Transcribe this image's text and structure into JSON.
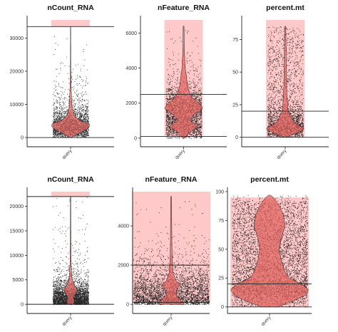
{
  "colors": {
    "shade": "#ffc9c9",
    "violin_fill": "#e2625e",
    "violin_stroke": "#222222",
    "points": "#000000",
    "axis": "#222222"
  },
  "chart_data": [
    {
      "type": "violin",
      "title": "nCount_RNA",
      "xlabel": "",
      "ylabel": "",
      "categories": [
        "query"
      ],
      "ylim": [
        -1500,
        35500
      ],
      "yticks": [
        0,
        10000,
        20000,
        30000
      ],
      "hlines": [
        33500,
        0
      ],
      "shaded_range": [
        33500,
        35500
      ],
      "median": 4000,
      "max": 33500,
      "n_points": 2600,
      "violin": [
        [
          0,
          0.05
        ],
        [
          1500,
          0.5
        ],
        [
          2500,
          0.85
        ],
        [
          3500,
          1.0
        ],
        [
          4200,
          0.95
        ],
        [
          5000,
          0.5
        ],
        [
          6500,
          0.2
        ],
        [
          9000,
          0.08
        ],
        [
          12000,
          0.05
        ],
        [
          15000,
          0.03
        ],
        [
          20000,
          0.015
        ],
        [
          33500,
          0.005
        ]
      ],
      "scatter_dist": [
        [
          0,
          0.3
        ],
        [
          1000,
          0.8
        ],
        [
          2500,
          1.0
        ],
        [
          4000,
          1.0
        ],
        [
          6000,
          0.6
        ],
        [
          8000,
          0.3
        ],
        [
          10000,
          0.15
        ],
        [
          13000,
          0.06
        ],
        [
          18000,
          0.02
        ],
        [
          25000,
          0.005
        ],
        [
          33500,
          0.001
        ]
      ]
    },
    {
      "type": "violin",
      "title": "nFeature_RNA",
      "xlabel": "",
      "ylabel": "",
      "categories": [
        "query"
      ],
      "ylim": [
        -250,
        6750
      ],
      "yticks": [
        0,
        2000,
        4000,
        6000
      ],
      "hlines": [
        2500,
        100
      ],
      "shaded_range": [
        100,
        6750
      ],
      "median": 1700,
      "max": 6400,
      "n_points": 2600,
      "violin": [
        [
          0,
          0.05
        ],
        [
          300,
          0.3
        ],
        [
          700,
          0.75
        ],
        [
          1000,
          0.3
        ],
        [
          1300,
          0.5
        ],
        [
          1700,
          1.0
        ],
        [
          2000,
          0.8
        ],
        [
          2300,
          0.45
        ],
        [
          2600,
          0.3
        ],
        [
          3000,
          0.2
        ],
        [
          3500,
          0.15
        ],
        [
          4000,
          0.08
        ],
        [
          5000,
          0.04
        ],
        [
          6400,
          0.02
        ]
      ],
      "scatter_dist": [
        [
          0,
          0.5
        ],
        [
          500,
          0.8
        ],
        [
          1000,
          0.8
        ],
        [
          1500,
          0.9
        ],
        [
          2000,
          0.85
        ],
        [
          2500,
          0.4
        ],
        [
          3000,
          0.15
        ],
        [
          4000,
          0.05
        ],
        [
          5000,
          0.02
        ],
        [
          6400,
          0.005
        ]
      ]
    },
    {
      "type": "violin",
      "title": "percent.mt",
      "xlabel": "",
      "ylabel": "",
      "categories": [
        "query"
      ],
      "ylim": [
        -4,
        90
      ],
      "yticks": [
        0,
        25,
        50,
        75
      ],
      "hlines": [
        20,
        0
      ],
      "shaded_range": [
        0,
        90
      ],
      "median": 7,
      "max": 85,
      "n_points": 2400,
      "violin": [
        [
          0,
          0.05
        ],
        [
          3,
          0.5
        ],
        [
          5,
          0.9
        ],
        [
          7,
          1.0
        ],
        [
          9,
          0.7
        ],
        [
          12,
          0.4
        ],
        [
          16,
          0.3
        ],
        [
          20,
          0.15
        ],
        [
          30,
          0.1
        ],
        [
          40,
          0.07
        ],
        [
          60,
          0.05
        ],
        [
          85,
          0.03
        ]
      ],
      "scatter_dist": [
        [
          0,
          0.5
        ],
        [
          5,
          1.0
        ],
        [
          10,
          0.9
        ],
        [
          15,
          0.6
        ],
        [
          20,
          0.35
        ],
        [
          30,
          0.15
        ],
        [
          50,
          0.13
        ],
        [
          70,
          0.12
        ],
        [
          85,
          0.08
        ]
      ]
    },
    {
      "type": "violin",
      "title": "nCount_RNA",
      "xlabel": "",
      "ylabel": "",
      "categories": [
        "query"
      ],
      "ylim": [
        -1000,
        23000
      ],
      "yticks": [
        0,
        5000,
        10000,
        15000,
        20000
      ],
      "hlines": [
        22000,
        0
      ],
      "shaded_range": [
        22000,
        23000
      ],
      "median": 3000,
      "max": 22000,
      "n_points": 3400,
      "violin": [
        [
          0,
          0.15
        ],
        [
          500,
          0.2
        ],
        [
          1500,
          0.15
        ],
        [
          2500,
          0.3
        ],
        [
          3000,
          0.35
        ],
        [
          3500,
          0.25
        ],
        [
          5000,
          0.08
        ],
        [
          8000,
          0.03
        ],
        [
          12000,
          0.02
        ],
        [
          22000,
          0.01
        ]
      ],
      "scatter_dist": [
        [
          0,
          1.0
        ],
        [
          1000,
          0.9
        ],
        [
          2000,
          0.6
        ],
        [
          3000,
          0.35
        ],
        [
          4000,
          0.15
        ],
        [
          6000,
          0.05
        ],
        [
          9000,
          0.015
        ],
        [
          13000,
          0.005
        ],
        [
          22000,
          0.001
        ]
      ]
    },
    {
      "type": "violin",
      "title": "nFeature_RNA",
      "xlabel": "",
      "ylabel": "",
      "categories": [
        "query"
      ],
      "ylim": [
        -250,
        5750
      ],
      "yticks": [
        0,
        2000,
        4000
      ],
      "hlines": [
        2000,
        100
      ],
      "shaded_range": [
        100,
        5750
      ],
      "median": 1000,
      "max": 5500,
      "n_points": 3400,
      "violin": [
        [
          0,
          0.35
        ],
        [
          200,
          0.25
        ],
        [
          500,
          0.12
        ],
        [
          800,
          0.15
        ],
        [
          1000,
          0.25
        ],
        [
          1200,
          0.12
        ],
        [
          1600,
          0.05
        ],
        [
          2200,
          0.03
        ],
        [
          3000,
          0.02
        ],
        [
          5500,
          0.01
        ]
      ],
      "scatter_dist": [
        [
          0,
          1.0
        ],
        [
          400,
          0.8
        ],
        [
          800,
          0.55
        ],
        [
          1200,
          0.35
        ],
        [
          1600,
          0.2
        ],
        [
          2000,
          0.1
        ],
        [
          2500,
          0.04
        ],
        [
          3500,
          0.01
        ],
        [
          5500,
          0.002
        ]
      ]
    },
    {
      "type": "violin",
      "title": "percent.mt",
      "xlabel": "",
      "ylabel": "",
      "categories": [
        "query"
      ],
      "ylim": [
        -2,
        100
      ],
      "yticks": [
        0,
        25,
        50,
        75,
        100
      ],
      "hlines": [
        20,
        0
      ],
      "shaded_range": [
        0,
        95
      ],
      "median": 18,
      "max": 97,
      "n_points": 5200,
      "violin": [
        [
          0,
          0.2
        ],
        [
          5,
          0.6
        ],
        [
          10,
          0.9
        ],
        [
          15,
          1.0
        ],
        [
          20,
          0.8
        ],
        [
          25,
          0.5
        ],
        [
          30,
          0.4
        ],
        [
          40,
          0.3
        ],
        [
          50,
          0.25
        ],
        [
          60,
          0.3
        ],
        [
          70,
          0.4
        ],
        [
          80,
          0.35
        ],
        [
          88,
          0.25
        ],
        [
          95,
          0.1
        ],
        [
          97,
          0.02
        ]
      ],
      "scatter_dist": [
        [
          0,
          0.3
        ],
        [
          5,
          0.5
        ],
        [
          10,
          0.8
        ],
        [
          15,
          1.0
        ],
        [
          20,
          0.9
        ],
        [
          25,
          0.7
        ],
        [
          30,
          0.6
        ],
        [
          40,
          0.55
        ],
        [
          50,
          0.55
        ],
        [
          60,
          0.5
        ],
        [
          70,
          0.5
        ],
        [
          80,
          0.45
        ],
        [
          90,
          0.4
        ],
        [
          95,
          0.1
        ]
      ]
    }
  ]
}
